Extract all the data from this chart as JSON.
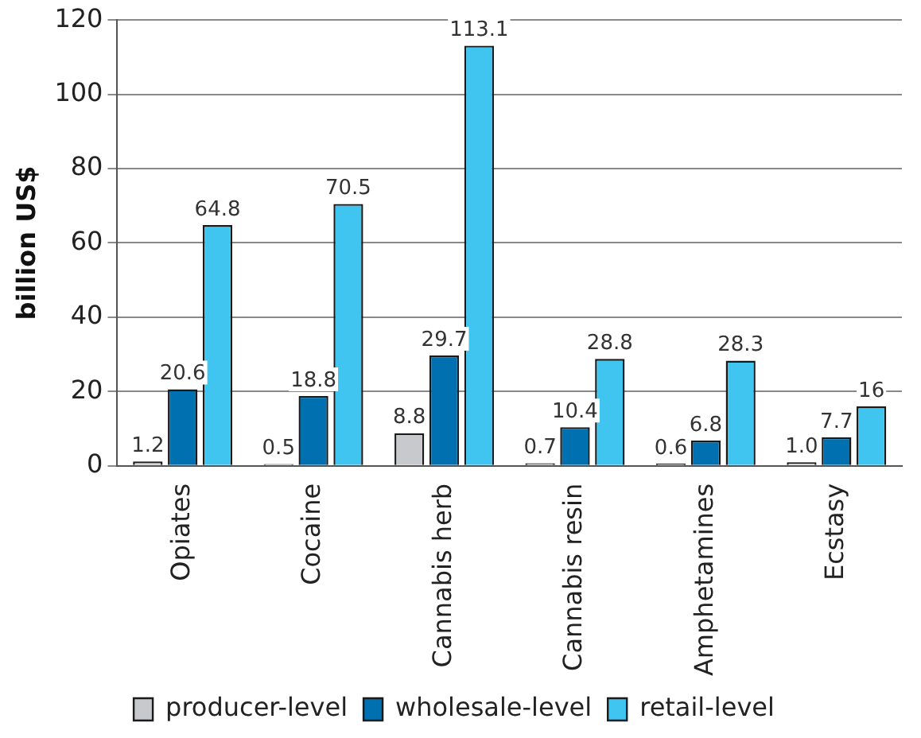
{
  "chart_data": {
    "type": "bar",
    "ylabel": "billion US$",
    "categories": [
      "Opiates",
      "Cocaine",
      "Cannabis herb",
      "Cannabis resin",
      "Amphetamines",
      "Ecstasy"
    ],
    "series": [
      {
        "name": "producer-level",
        "color": "#c8c9cc",
        "values": [
          1.2,
          0.5,
          8.8,
          0.7,
          0.6,
          1.0
        ],
        "value_labels": [
          "1.2",
          "0.5",
          "8.8",
          "0.7",
          "0.6",
          "1.0"
        ]
      },
      {
        "name": "wholesale-level",
        "color": "#0070b0",
        "values": [
          20.6,
          18.8,
          29.7,
          10.4,
          6.8,
          7.7
        ],
        "value_labels": [
          "20.6",
          "18.8",
          "29.7",
          "10.4",
          "6.8",
          "7.7"
        ]
      },
      {
        "name": "retail-level",
        "color": "#40c4f0",
        "values": [
          64.8,
          70.5,
          113.1,
          28.8,
          28.3,
          16
        ],
        "value_labels": [
          "64.8",
          "70.5",
          "113.1",
          "28.8",
          "28.3",
          "16"
        ]
      }
    ],
    "ylim": [
      0,
      120
    ],
    "yticks": [
      0,
      20,
      40,
      60,
      80,
      100,
      120
    ],
    "grid": "y",
    "legend": "bottom"
  }
}
